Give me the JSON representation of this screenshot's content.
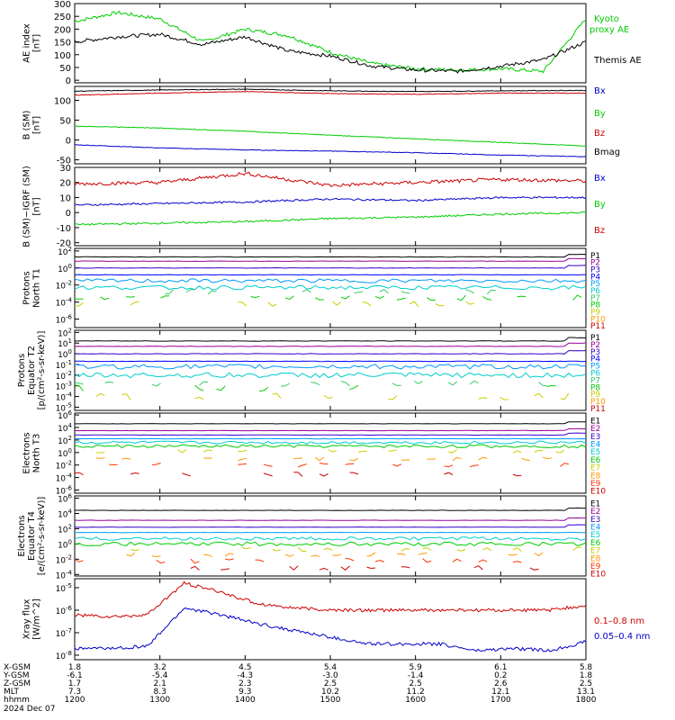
{
  "chart_data": [
    {
      "type": "line",
      "ylabel": "AE index [nT]",
      "ylim": [
        -10,
        300
      ],
      "yticks": [
        "0",
        "50",
        "100",
        "150",
        "200",
        "250",
        "300"
      ],
      "ytick_values": [
        0,
        50,
        100,
        150,
        200,
        250,
        300
      ],
      "x": [
        "12:00",
        "12:30",
        "13:00",
        "13:30",
        "14:00",
        "14:30",
        "15:00",
        "15:30",
        "16:00",
        "16:30",
        "17:00",
        "17:30",
        "18:00"
      ],
      "series": [
        {
          "name": "Kyoto proxy AE",
          "color": "#00cc00",
          "legend_lines": [
            "Kyoto",
            "proxy AE"
          ],
          "values": [
            230,
            265,
            240,
            150,
            200,
            175,
            110,
            65,
            45,
            40,
            45,
            35,
            240
          ]
        },
        {
          "name": "Themis AE",
          "color": "#000000",
          "legend_lines": [
            "Themis AE"
          ],
          "values": [
            150,
            170,
            180,
            140,
            170,
            115,
            95,
            55,
            40,
            35,
            55,
            80,
            150
          ]
        }
      ]
    },
    {
      "type": "line",
      "ylabel": "B (SM) [nT]",
      "ylim": [
        -60,
        135
      ],
      "yticks": [
        "-50",
        "0",
        "50",
        "100"
      ],
      "ytick_values": [
        -50,
        0,
        50,
        100
      ],
      "x": [
        "12:00",
        "13:00",
        "14:00",
        "15:00",
        "16:00",
        "17:00",
        "18:00"
      ],
      "series": [
        {
          "name": "Bx",
          "color": "#0000cc",
          "values": [
            -12,
            -20,
            -25,
            -28,
            -32,
            -38,
            -42
          ]
        },
        {
          "name": "By",
          "color": "#00cc00",
          "values": [
            35,
            30,
            22,
            12,
            3,
            -6,
            -15
          ]
        },
        {
          "name": "Bz",
          "color": "#cc0000",
          "values": [
            113,
            118,
            122,
            117,
            115,
            118,
            118
          ]
        },
        {
          "name": "Bmag",
          "color": "#000000",
          "values": [
            123,
            126,
            128,
            124,
            122,
            124,
            125
          ]
        }
      ]
    },
    {
      "type": "line",
      "ylabel": "B (SM)-IGRF (SM) [nT]",
      "ylim": [
        -22,
        30
      ],
      "yticks": [
        "-20",
        "-10",
        "0",
        "10",
        "20",
        "30"
      ],
      "ytick_values": [
        -20,
        -10,
        0,
        10,
        20,
        30
      ],
      "x": [
        "12:00",
        "13:00",
        "14:00",
        "15:00",
        "16:00",
        "17:00",
        "18:00"
      ],
      "series": [
        {
          "name": "Bx",
          "color": "#0000cc",
          "values": [
            5,
            6,
            7,
            9,
            8,
            10,
            10
          ]
        },
        {
          "name": "By",
          "color": "#00cc00",
          "values": [
            -8,
            -7,
            -6,
            -4,
            -3,
            -1,
            0
          ]
        },
        {
          "name": "Bz",
          "color": "#cc0000",
          "values": [
            19,
            20,
            26,
            18,
            20,
            22,
            21
          ]
        }
      ]
    },
    {
      "type": "line",
      "ylabel": "Protons North T1",
      "yscale": "log",
      "yticks": [
        "10^2",
        "10^0",
        "10^-2",
        "10^-4",
        "10^-6"
      ],
      "ytick_exps": [
        2,
        0,
        -2,
        -4,
        -6
      ],
      "ylim_exp": [
        -7,
        2.3
      ],
      "channels": [
        "P1",
        "P2",
        "P3",
        "P4",
        "P5",
        "P6",
        "P7",
        "P8",
        "P9",
        "P10",
        "P11"
      ],
      "channel_colors": [
        "#000000",
        "#990099",
        "#3300cc",
        "#0000ff",
        "#0099ff",
        "#00cccc",
        "#33cc66",
        "#00cc00",
        "#cccc00",
        "#ff9900",
        "#cc0000"
      ],
      "levels_exp": [
        1.3,
        0.8,
        0.0,
        -0.8,
        -1.5,
        -2.3,
        -2.8,
        -3.5,
        -4.2
      ]
    },
    {
      "type": "line",
      "ylabel": "Protons Equator T2 [p/(cm²-s-sr-keV)]",
      "yscale": "log",
      "yticks": [
        "10^2",
        "10^1",
        "10^0",
        "10^-1",
        "10^-2",
        "10^-3",
        "10^-4",
        "10^-5"
      ],
      "ytick_exps": [
        2,
        1,
        0,
        -1,
        -2,
        -3,
        -4,
        -5
      ],
      "ylim_exp": [
        -5.3,
        2.2
      ],
      "channels": [
        "P1",
        "P2",
        "P3",
        "P4",
        "P5",
        "P6",
        "P7",
        "P8",
        "P9",
        "P10",
        "P11"
      ],
      "channel_colors": [
        "#000000",
        "#990099",
        "#3300cc",
        "#0000ff",
        "#0099ff",
        "#00cccc",
        "#33cc66",
        "#00cc00",
        "#cccc00",
        "#ff9900",
        "#cc0000"
      ],
      "levels_exp": [
        1.2,
        0.7,
        0.0,
        -0.7,
        -1.2,
        -2.0,
        -2.8,
        -3.2,
        -4.0
      ]
    },
    {
      "type": "line",
      "ylabel": "Electrons North T3",
      "yscale": "log",
      "yticks": [
        "10^6",
        "10^4",
        "10^2",
        "10^0",
        "10^-2",
        "10^-4",
        "10^-6"
      ],
      "ytick_exps": [
        6,
        4,
        2,
        0,
        -2,
        -4,
        -6
      ],
      "ylim_exp": [
        -6.5,
        6.3
      ],
      "channels": [
        "E1",
        "E2",
        "E3",
        "E4",
        "E5",
        "E6",
        "E7",
        "E8",
        "E9",
        "E10"
      ],
      "channel_colors": [
        "#000000",
        "#990099",
        "#3300cc",
        "#0099ff",
        "#00cccc",
        "#00cc00",
        "#cccc00",
        "#ff9900",
        "#ff3300",
        "#cc0000"
      ],
      "levels_exp": [
        4.6,
        3.5,
        2.8,
        2.2,
        1.6,
        1.0,
        0.2,
        -1.0,
        -2.0,
        -3.5
      ]
    },
    {
      "type": "line",
      "ylabel": "Electrons Equator T4 [e/(cm²-s-sr-keV)]",
      "yscale": "log",
      "yticks": [
        "10^6",
        "10^4",
        "10^2",
        "10^0",
        "10^-2",
        "10^-4"
      ],
      "ytick_exps": [
        6,
        4,
        2,
        0,
        -2,
        -4
      ],
      "ylim_exp": [
        -4.2,
        6.3
      ],
      "channels": [
        "E1",
        "E2",
        "E3",
        "E4",
        "E5",
        "E6",
        "E7",
        "E8",
        "E9",
        "E10"
      ],
      "channel_colors": [
        "#000000",
        "#990099",
        "#3300cc",
        "#0099ff",
        "#00cccc",
        "#00cc00",
        "#cccc00",
        "#ff9900",
        "#ff3300",
        "#cc0000"
      ],
      "levels_exp": [
        4.4,
        3.1,
        2.2,
        1.5,
        0.7,
        0.0,
        -0.7,
        -1.4,
        -2.2,
        -3.2
      ]
    },
    {
      "type": "line",
      "ylabel": "Xray flux [W/m^2]",
      "yscale": "log",
      "yticks": [
        "10^-5",
        "10^-6",
        "10^-7",
        "10^-8"
      ],
      "ytick_exps": [
        -5,
        -6,
        -7,
        -8
      ],
      "ylim_exp": [
        -8.2,
        -4.6
      ],
      "x": [
        "12:00",
        "12:30",
        "13:00",
        "13:10",
        "13:20",
        "13:30",
        "14:00",
        "14:30",
        "15:00",
        "15:30",
        "16:00",
        "16:30",
        "17:00",
        "17:30",
        "18:00"
      ],
      "series": [
        {
          "name": "0.1-0.8 nm",
          "color": "#cc0000",
          "legend_lines": [
            "0.1–0.8 nm"
          ],
          "values_exp": [
            -6.2,
            -6.3,
            -6.2,
            -4.8,
            -5.2,
            -5.7,
            -5.9,
            -6.0,
            -6.0,
            -6.0,
            -6.0,
            -6.0,
            -6.0,
            -6.0,
            -5.8
          ]
        },
        {
          "name": "0.05-0.4 nm",
          "color": "#0000cc",
          "legend_lines": [
            "0.05–0.4 nm"
          ],
          "values_exp": [
            -7.7,
            -7.7,
            -7.6,
            -5.9,
            -6.2,
            -6.6,
            -6.9,
            -7.2,
            -7.5,
            -7.5,
            -7.5,
            -7.8,
            -7.7,
            -7.8,
            -7.4
          ]
        }
      ]
    }
  ],
  "x_axis": {
    "row_labels": [
      "X-GSM",
      "Y-GSM",
      "Z-GSM",
      "MLT",
      "hhmm",
      "2024 Dec 07"
    ],
    "columns": [
      {
        "values": [
          "1.8",
          "-6.1",
          "1.7",
          "7.3",
          "1200"
        ]
      },
      {
        "values": [
          "3.2",
          "-5.4",
          "2.1",
          "8.3",
          "1300"
        ]
      },
      {
        "values": [
          "4.5",
          "-4.3",
          "2.3",
          "9.3",
          "1400"
        ]
      },
      {
        "values": [
          "5.4",
          "-3.0",
          "2.5",
          "10.2",
          "1500"
        ]
      },
      {
        "values": [
          "5.9",
          "-1.4",
          "2.5",
          "11.2",
          "1600"
        ]
      },
      {
        "values": [
          "6.1",
          "0.2",
          "2.6",
          "12.1",
          "1700"
        ]
      },
      {
        "values": [
          "5.8",
          "1.8",
          "2.5",
          "13.1",
          "1800"
        ]
      }
    ]
  }
}
